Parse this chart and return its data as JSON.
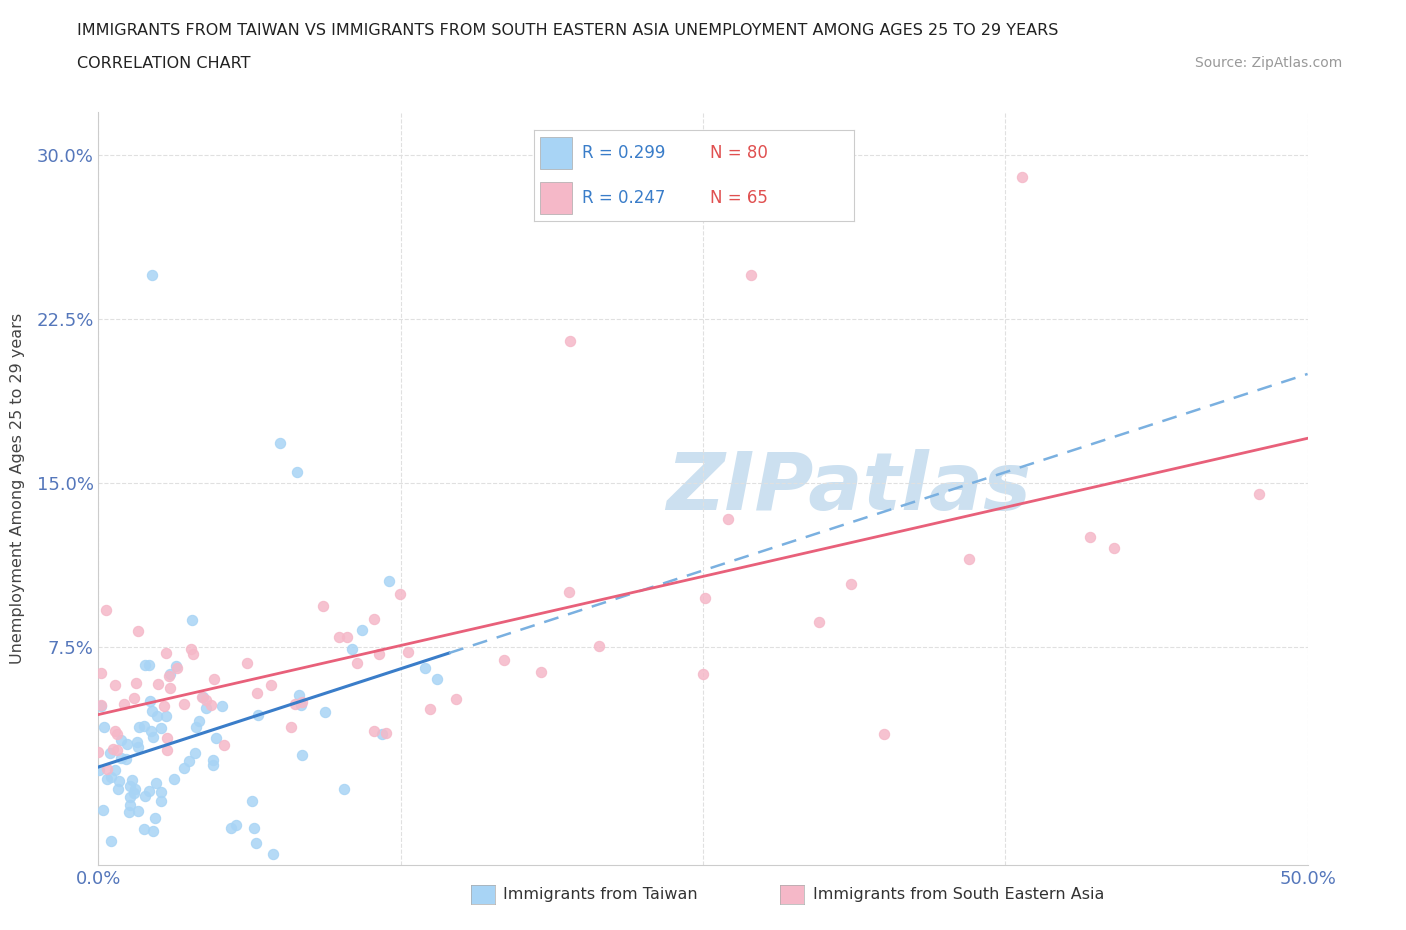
{
  "title_line1": "IMMIGRANTS FROM TAIWAN VS IMMIGRANTS FROM SOUTH EASTERN ASIA UNEMPLOYMENT AMONG AGES 25 TO 29 YEARS",
  "title_line2": "CORRELATION CHART",
  "source": "Source: ZipAtlas.com",
  "ylabel": "Unemployment Among Ages 25 to 29 years",
  "xlim": [
    0.0,
    0.5
  ],
  "ylim": [
    -0.025,
    0.32
  ],
  "xtick_values": [
    0.0,
    0.125,
    0.25,
    0.375,
    0.5
  ],
  "xtick_labels": [
    "0.0%",
    "",
    "",
    "",
    "50.0%"
  ],
  "ytick_values": [
    0.075,
    0.15,
    0.225,
    0.3
  ],
  "ytick_labels": [
    "7.5%",
    "15.0%",
    "22.5%",
    "30.0%"
  ],
  "taiwan_R": 0.299,
  "taiwan_N": 80,
  "sea_R": 0.247,
  "sea_N": 65,
  "taiwan_color": "#a8d4f5",
  "sea_color": "#f5b8c8",
  "taiwan_line_color": "#3a7dc9",
  "taiwan_dash_color": "#7ab0e0",
  "sea_line_color": "#e8607a",
  "background_color": "#ffffff",
  "grid_color": "#e0e0e0",
  "watermark_text": "ZIPatlas",
  "watermark_color": "#cce0f0",
  "legend_R_color": "#3a7dc9",
  "legend_N_color": "#e05050"
}
